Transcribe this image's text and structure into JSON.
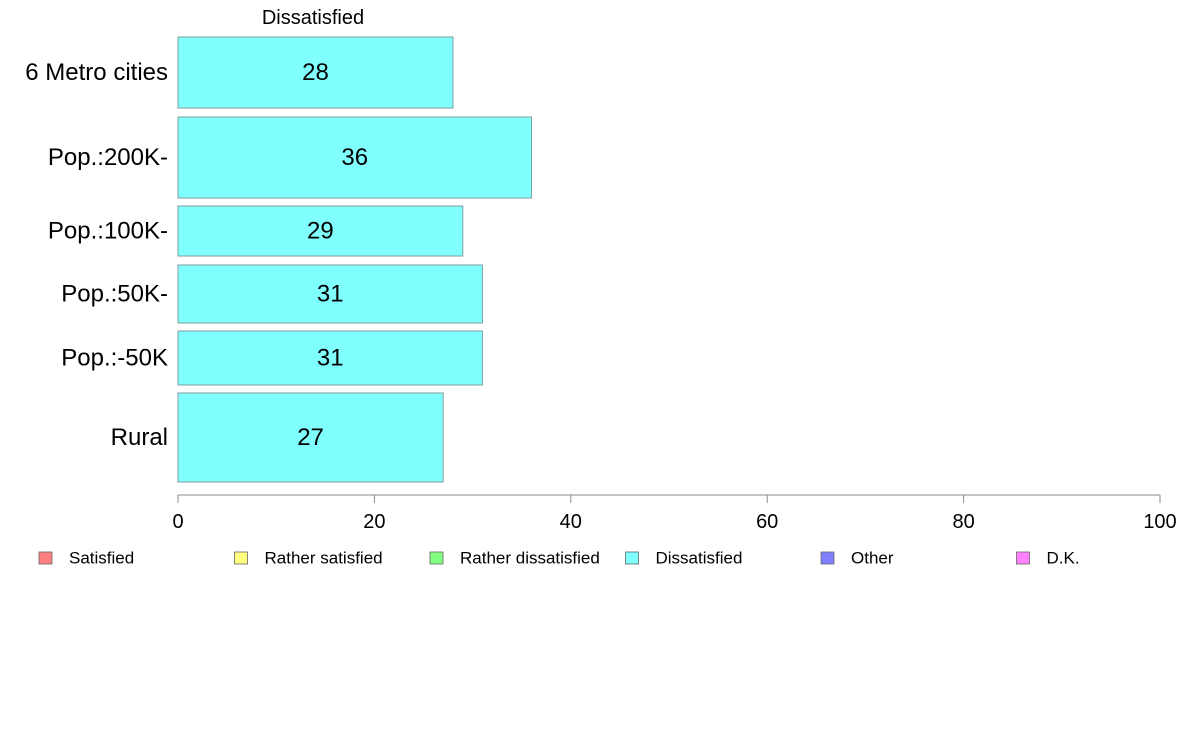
{
  "chart_data": {
    "type": "bar",
    "orientation": "horizontal",
    "title": "Dissatisfied",
    "categories": [
      "6 Metro cities",
      "Pop.:200K-",
      "Pop.:100K-",
      "Pop.:50K-",
      "Pop.:-50K",
      "Rural"
    ],
    "values": [
      28,
      36,
      29,
      31,
      31,
      27
    ],
    "xlabel": "",
    "ylabel": "",
    "xlim": [
      0,
      100
    ],
    "xticks": [
      0,
      20,
      40,
      60,
      80,
      100
    ],
    "grid": false,
    "bar_color": "#80FFFF",
    "bar_edge_color": "#7F9F9F",
    "legend_position": "bottom",
    "legend": [
      {
        "name": "Satisfied",
        "color": "#FF8080"
      },
      {
        "name": "Rather satisfied",
        "color": "#FFFF80"
      },
      {
        "name": "Rather dissatisfied",
        "color": "#80FF80"
      },
      {
        "name": "Dissatisfied",
        "color": "#80FFFF"
      },
      {
        "name": "Other",
        "color": "#8080FF"
      },
      {
        "name": "D.K.",
        "color": "#FF80FF"
      }
    ]
  }
}
